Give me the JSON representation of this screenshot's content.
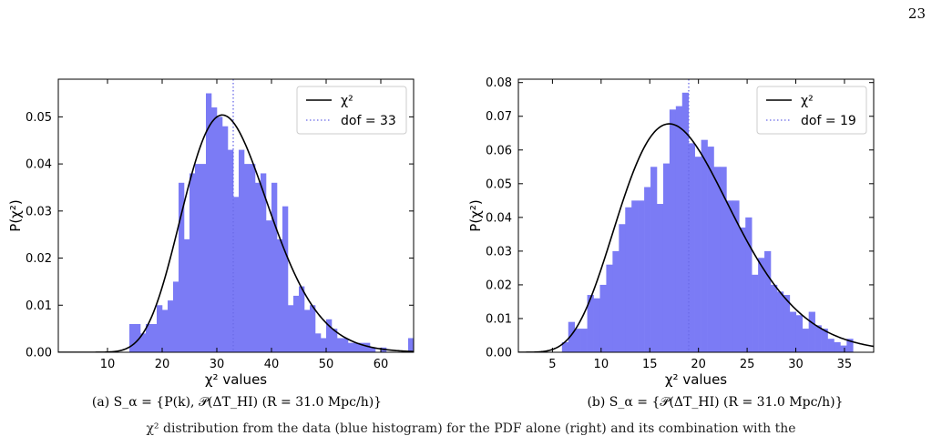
{
  "page": {
    "number": "23"
  },
  "captions": {
    "a": "(a) S_α = {P(k), 𝒫(ΔT_HI) (R = 31.0 Mpc/h)}",
    "b": "(b) S_α = {𝒫(ΔT_HI) (R = 31.0 Mpc/h)}"
  },
  "footnote": "χ² distribution from the data (blue histogram) for the PDF alone (right) and its combination with the",
  "chart_data": [
    {
      "type": "bar",
      "xlabel": "χ² values",
      "ylabel": "P(χ²)",
      "xlim": [
        1,
        66
      ],
      "ylim": [
        0,
        0.058
      ],
      "xticks": [
        10,
        20,
        30,
        40,
        50,
        60
      ],
      "yticks": [
        0.0,
        0.01,
        0.02,
        0.03,
        0.04,
        0.05
      ],
      "ytick_labels": [
        "0.00",
        "0.01",
        "0.02",
        "0.03",
        "0.04",
        "0.05"
      ],
      "bin_width": 1.0,
      "bins": [
        [
          14.5,
          0.006
        ],
        [
          15.5,
          0.006
        ],
        [
          16.5,
          0.004
        ],
        [
          17.5,
          0.006
        ],
        [
          18.5,
          0.006
        ],
        [
          19.5,
          0.01
        ],
        [
          20.5,
          0.009
        ],
        [
          21.5,
          0.011
        ],
        [
          22.5,
          0.015
        ],
        [
          23.5,
          0.036
        ],
        [
          24.5,
          0.024
        ],
        [
          25.5,
          0.038
        ],
        [
          26.5,
          0.04
        ],
        [
          27.5,
          0.04
        ],
        [
          28.5,
          0.055
        ],
        [
          29.5,
          0.052
        ],
        [
          30.5,
          0.05
        ],
        [
          31.5,
          0.048
        ],
        [
          32.5,
          0.043
        ],
        [
          33.5,
          0.033
        ],
        [
          34.5,
          0.043
        ],
        [
          35.5,
          0.04
        ],
        [
          36.5,
          0.04
        ],
        [
          37.5,
          0.036
        ],
        [
          38.5,
          0.038
        ],
        [
          39.5,
          0.028
        ],
        [
          40.5,
          0.036
        ],
        [
          41.5,
          0.024
        ],
        [
          42.5,
          0.031
        ],
        [
          43.5,
          0.01
        ],
        [
          44.5,
          0.012
        ],
        [
          45.5,
          0.014
        ],
        [
          46.5,
          0.009
        ],
        [
          47.5,
          0.01
        ],
        [
          48.5,
          0.004
        ],
        [
          49.5,
          0.003
        ],
        [
          50.5,
          0.007
        ],
        [
          51.5,
          0.005
        ],
        [
          52.5,
          0.003
        ],
        [
          53.5,
          0.003
        ],
        [
          54.5,
          0.002
        ],
        [
          55.5,
          0.002
        ],
        [
          56.5,
          0.002
        ],
        [
          57.5,
          0.002
        ],
        [
          58.5,
          0.001
        ],
        [
          60.5,
          0.001
        ],
        [
          65.5,
          0.003
        ]
      ],
      "curve": {
        "name": "χ²",
        "dof": 33
      },
      "vline": {
        "x": 33,
        "label": "dof  = 33"
      },
      "legend_position": "top-right",
      "colors": {
        "bars": "#7b7bf5",
        "curve": "#000000",
        "vline": "#6b6be8"
      }
    },
    {
      "type": "bar",
      "xlabel": "χ² values",
      "ylabel": "P(χ²)",
      "xlim": [
        1.5,
        38
      ],
      "ylim": [
        0,
        0.081
      ],
      "xticks": [
        5,
        10,
        15,
        20,
        25,
        30,
        35
      ],
      "yticks": [
        0.0,
        0.01,
        0.02,
        0.03,
        0.04,
        0.05,
        0.06,
        0.07,
        0.08
      ],
      "ytick_labels": [
        "0.00",
        "0.01",
        "0.02",
        "0.03",
        "0.04",
        "0.05",
        "0.06",
        "0.07",
        "0.08"
      ],
      "bin_width": 0.65,
      "bins": [
        [
          6.3,
          0.003
        ],
        [
          6.95,
          0.009
        ],
        [
          7.6,
          0.007
        ],
        [
          8.25,
          0.007
        ],
        [
          8.9,
          0.017
        ],
        [
          9.55,
          0.016
        ],
        [
          10.2,
          0.02
        ],
        [
          10.85,
          0.026
        ],
        [
          11.5,
          0.03
        ],
        [
          12.15,
          0.038
        ],
        [
          12.8,
          0.043
        ],
        [
          13.45,
          0.045
        ],
        [
          14.1,
          0.045
        ],
        [
          14.75,
          0.049
        ],
        [
          15.4,
          0.055
        ],
        [
          16.05,
          0.044
        ],
        [
          16.7,
          0.056
        ],
        [
          17.35,
          0.072
        ],
        [
          18.0,
          0.073
        ],
        [
          18.65,
          0.077
        ],
        [
          19.3,
          0.062
        ],
        [
          19.95,
          0.058
        ],
        [
          20.6,
          0.063
        ],
        [
          21.25,
          0.061
        ],
        [
          21.9,
          0.055
        ],
        [
          22.55,
          0.055
        ],
        [
          23.2,
          0.045
        ],
        [
          23.85,
          0.045
        ],
        [
          24.5,
          0.037
        ],
        [
          25.15,
          0.04
        ],
        [
          25.8,
          0.023
        ],
        [
          26.45,
          0.028
        ],
        [
          27.1,
          0.03
        ],
        [
          27.75,
          0.02
        ],
        [
          28.4,
          0.018
        ],
        [
          29.05,
          0.017
        ],
        [
          29.7,
          0.012
        ],
        [
          30.35,
          0.011
        ],
        [
          31.0,
          0.007
        ],
        [
          31.65,
          0.012
        ],
        [
          32.3,
          0.008
        ],
        [
          32.95,
          0.007
        ],
        [
          33.6,
          0.004
        ],
        [
          34.25,
          0.003
        ],
        [
          34.9,
          0.002
        ],
        [
          35.55,
          0.004
        ]
      ],
      "curve": {
        "name": "χ²",
        "dof": 19
      },
      "vline": {
        "x": 19,
        "label": "dof  = 19"
      },
      "legend_position": "top-right",
      "colors": {
        "bars": "#7b7bf5",
        "curve": "#000000",
        "vline": "#6b6be8"
      }
    }
  ]
}
